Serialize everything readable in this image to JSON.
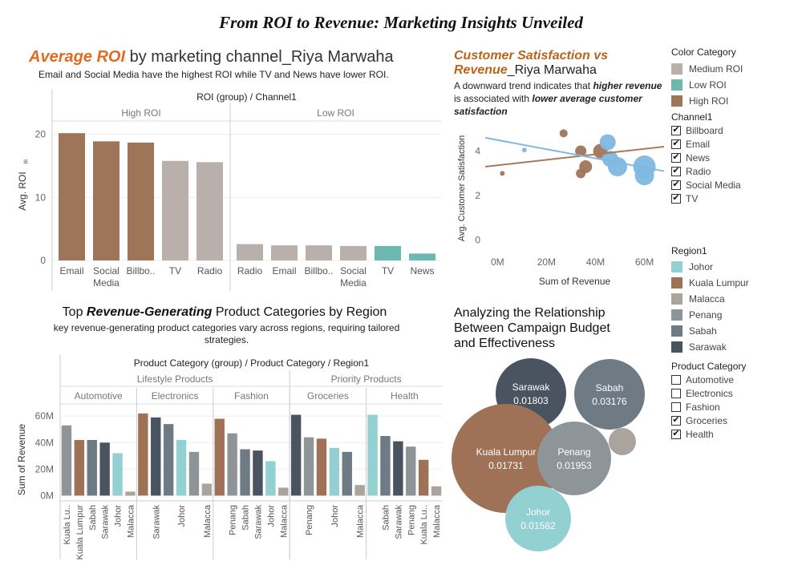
{
  "dashboard": {
    "title": "From ROI to Revenue: Marketing Insights Unveiled"
  },
  "roi_panel": {
    "title_highlight": "Average ROI",
    "title_rest": " by marketing channel_Riya Marwaha",
    "subtitle": "Email and Social Media have the highest ROI while TV and News have lower ROI.",
    "header": "ROI (group) / Channel1",
    "ylabel": "Avg. ROI"
  },
  "scatter_panel": {
    "title_line1": "Customer Satisfaction vs",
    "title_line2_highlight": "Revenue",
    "title_line2_rest": "_Riya Marwaha",
    "desc_1": "A downward trend indicates that ",
    "desc_2": "higher revenue",
    "desc_3": " is associated with ",
    "desc_4": "lower average customer satisfaction",
    "xlabel": "Sum of Revenue",
    "ylabel": "Avg. Customer Satisfaction"
  },
  "revenue_panel": {
    "title_a": "Top ",
    "title_b": "Revenue-Generating",
    "title_c": " Product Categories by Region",
    "subtitle_1": "key revenue-generating product categories vary across regions, requiring tailored",
    "subtitle_2": "strategies.",
    "header": "Product Category (group) / Product Category / Region1",
    "ylabel": "Sum of Revenue"
  },
  "bubble_panel": {
    "title_1": "Analyzing the Relationship",
    "title_2": "Between Campaign Budget",
    "title_3": "and Effectiveness"
  },
  "legends": {
    "color_category": {
      "title": "Color Category",
      "items": [
        {
          "label": "Medium ROI",
          "color": "#b9b0ab"
        },
        {
          "label": "Low ROI",
          "color": "#6cb9b0"
        },
        {
          "label": "High ROI",
          "color": "#9e7558"
        }
      ]
    },
    "channel": {
      "title": "Channel1",
      "items": [
        {
          "label": "Billboard",
          "checked": true
        },
        {
          "label": "Email",
          "checked": true
        },
        {
          "label": "News",
          "checked": true
        },
        {
          "label": "Radio",
          "checked": true
        },
        {
          "label": "Social Media",
          "checked": true
        },
        {
          "label": "TV",
          "checked": true
        }
      ]
    },
    "region": {
      "title": "Region1",
      "items": [
        {
          "label": "Johor",
          "color": "#92d0d2"
        },
        {
          "label": "Kuala Lumpur",
          "color": "#9f7257"
        },
        {
          "label": "Malacca",
          "color": "#aba39e"
        },
        {
          "label": "Penang",
          "color": "#8e9599"
        },
        {
          "label": "Sabah",
          "color": "#6e7a84"
        },
        {
          "label": "Sarawak",
          "color": "#4a5360"
        }
      ]
    },
    "product_category": {
      "title": "Product Category",
      "items": [
        {
          "label": "Automotive",
          "checked": false
        },
        {
          "label": "Electronics",
          "checked": false
        },
        {
          "label": "Fashion",
          "checked": false
        },
        {
          "label": "Groceries",
          "checked": true
        },
        {
          "label": "Health",
          "checked": true
        }
      ]
    }
  },
  "chart_data": [
    {
      "type": "bar",
      "ylabel": "Avg. ROI",
      "ylim": [
        0,
        22
      ],
      "yticks": [
        0,
        10,
        20
      ],
      "groups": [
        {
          "name": "High ROI",
          "bars": [
            {
              "label": "Email",
              "value": 20.2,
              "color": "#9e7558"
            },
            {
              "label": "Social Media",
              "value": 18.9,
              "color": "#9e7558"
            },
            {
              "label": "Billbo..",
              "value": 18.7,
              "color": "#9e7558"
            },
            {
              "label": "TV",
              "value": 15.8,
              "color": "#b9b0ab"
            },
            {
              "label": "Radio",
              "value": 15.6,
              "color": "#b9b0ab"
            }
          ]
        },
        {
          "name": "Low ROI",
          "bars": [
            {
              "label": "Radio",
              "value": 2.6,
              "color": "#b9b0ab"
            },
            {
              "label": "Email",
              "value": 2.4,
              "color": "#b9b0ab"
            },
            {
              "label": "Billbo..",
              "value": 2.4,
              "color": "#b9b0ab"
            },
            {
              "label": "Social Media",
              "value": 2.3,
              "color": "#b9b0ab"
            },
            {
              "label": "TV",
              "value": 2.3,
              "color": "#6cb9b0"
            },
            {
              "label": "News",
              "value": 1.1,
              "color": "#6cb9b0"
            }
          ]
        }
      ]
    },
    {
      "type": "scatter",
      "xlabel": "Sum of Revenue",
      "ylabel": "Avg. Customer Satisfaction",
      "xlim": [
        -5,
        68
      ],
      "ylim": [
        -0.3,
        5.1
      ],
      "xticks": [
        {
          "v": 0,
          "label": "0M"
        },
        {
          "v": 20,
          "label": "20M"
        },
        {
          "v": 40,
          "label": "40M"
        },
        {
          "v": 60,
          "label": "60M"
        }
      ],
      "yticks": [
        0,
        2,
        4
      ],
      "points": [
        {
          "x": 2,
          "y": 3.0,
          "r": 3,
          "color": "#9e7558"
        },
        {
          "x": 27,
          "y": 4.8,
          "r": 5,
          "color": "#9e7558"
        },
        {
          "x": 34,
          "y": 3.0,
          "r": 6,
          "color": "#9e7558"
        },
        {
          "x": 34,
          "y": 4.0,
          "r": 7,
          "color": "#9e7558"
        },
        {
          "x": 36,
          "y": 3.3,
          "r": 8,
          "color": "#9e7558"
        },
        {
          "x": 42,
          "y": 4.0,
          "r": 9,
          "color": "#9e7558"
        },
        {
          "x": 11,
          "y": 4.05,
          "r": 3,
          "color": "#7fb8e0"
        },
        {
          "x": 45,
          "y": 4.4,
          "r": 10,
          "color": "#7fb8e0"
        },
        {
          "x": 46,
          "y": 3.65,
          "r": 10,
          "color": "#7fb8e0"
        },
        {
          "x": 49,
          "y": 3.3,
          "r": 12,
          "color": "#7fb8e0"
        },
        {
          "x": 60,
          "y": 3.3,
          "r": 14,
          "color": "#7fb8e0"
        },
        {
          "x": 60,
          "y": 2.9,
          "r": 12,
          "color": "#7fb8e0"
        }
      ],
      "trendlines": [
        {
          "color": "#a87a5a",
          "x": [
            -5,
            68
          ],
          "y": [
            3.3,
            4.2
          ]
        },
        {
          "color": "#7fb8e0",
          "x": [
            -5,
            68
          ],
          "y": [
            4.6,
            3.1
          ]
        }
      ]
    },
    {
      "type": "bar",
      "ylabel": "Sum of Revenue",
      "ylim": [
        -4,
        68
      ],
      "yticks": [
        {
          "v": 0,
          "label": "0M"
        },
        {
          "v": 20,
          "label": "20M"
        },
        {
          "v": 40,
          "label": "40M"
        },
        {
          "v": 60,
          "label": "60M"
        }
      ],
      "super_groups": [
        {
          "name": "Lifestyle Products",
          "span": 3
        },
        {
          "name": "Priority Products",
          "span": 2
        }
      ],
      "groups": [
        {
          "name": "Automotive",
          "bars": [
            {
              "region": "Kuala Lu..",
              "value": 53,
              "color": "#8e9599"
            },
            {
              "region": "Kuala Lumpur",
              "value": 42,
              "color": "#9f7257"
            },
            {
              "region": "Sabah",
              "value": 42,
              "color": "#6e7a84"
            },
            {
              "region": "Sarawak",
              "value": 40,
              "color": "#4a5360"
            },
            {
              "region": "Johor",
              "value": 32,
              "color": "#92d0d2"
            },
            {
              "region": "Malacca",
              "value": 3,
              "color": "#aba39e"
            }
          ]
        },
        {
          "name": "Electronics",
          "bars": [
            {
              "region": "",
              "value": 62,
              "color": "#9f7257"
            },
            {
              "region": "Sarawak",
              "value": 59,
              "color": "#4a5360"
            },
            {
              "region": "",
              "value": 54,
              "color": "#6e7a84"
            },
            {
              "region": "Johor",
              "value": 42,
              "color": "#92d0d2"
            },
            {
              "region": "",
              "value": 33,
              "color": "#8e9599"
            },
            {
              "region": "Malacca",
              "value": 9,
              "color": "#aba39e"
            }
          ]
        },
        {
          "name": "Fashion",
          "bars": [
            {
              "region": "",
              "value": 58,
              "color": "#9f7257"
            },
            {
              "region": "Penang",
              "value": 47,
              "color": "#8e9599"
            },
            {
              "region": "Sabah",
              "value": 35,
              "color": "#6e7a84"
            },
            {
              "region": "Sarawak",
              "value": 34,
              "color": "#4a5360"
            },
            {
              "region": "Johor",
              "value": 26,
              "color": "#92d0d2"
            },
            {
              "region": "Malacca",
              "value": 6,
              "color": "#aba39e"
            }
          ]
        },
        {
          "name": "Groceries",
          "bars": [
            {
              "region": "",
              "value": 61,
              "color": "#4a5360"
            },
            {
              "region": "Penang",
              "value": 44,
              "color": "#8e9599"
            },
            {
              "region": "",
              "value": 43,
              "color": "#9f7257"
            },
            {
              "region": "Johor",
              "value": 36,
              "color": "#92d0d2"
            },
            {
              "region": "",
              "value": 33,
              "color": "#6e7a84"
            },
            {
              "region": "Malacca",
              "value": 8,
              "color": "#aba39e"
            }
          ]
        },
        {
          "name": "Health",
          "bars": [
            {
              "region": "",
              "value": 61,
              "color": "#92d0d2"
            },
            {
              "region": "Sabah",
              "value": 45,
              "color": "#6e7a84"
            },
            {
              "region": "Sarawak",
              "value": 41,
              "color": "#4a5360"
            },
            {
              "region": "Penang",
              "value": 37,
              "color": "#8e9599"
            },
            {
              "region": "Kuala Lu..",
              "value": 27,
              "color": "#9f7257"
            },
            {
              "region": "Malacca",
              "value": 7,
              "color": "#aba39e"
            }
          ]
        }
      ]
    },
    {
      "type": "bubble",
      "bubbles": [
        {
          "label": "Sarawak",
          "value": "0.01803",
          "color": "#4a5360"
        },
        {
          "label": "Sabah",
          "value": "0.03176",
          "color": "#6e7a84"
        },
        {
          "label": "Kuala Lumpur",
          "value": "0.01731",
          "color": "#9f7257"
        },
        {
          "label": "Penang",
          "value": "0.01953",
          "color": "#8e9599"
        },
        {
          "label": "",
          "value": "",
          "color": "#aba39e"
        },
        {
          "label": "Johor",
          "value": "0.01582",
          "color": "#92d0d2"
        }
      ]
    }
  ]
}
